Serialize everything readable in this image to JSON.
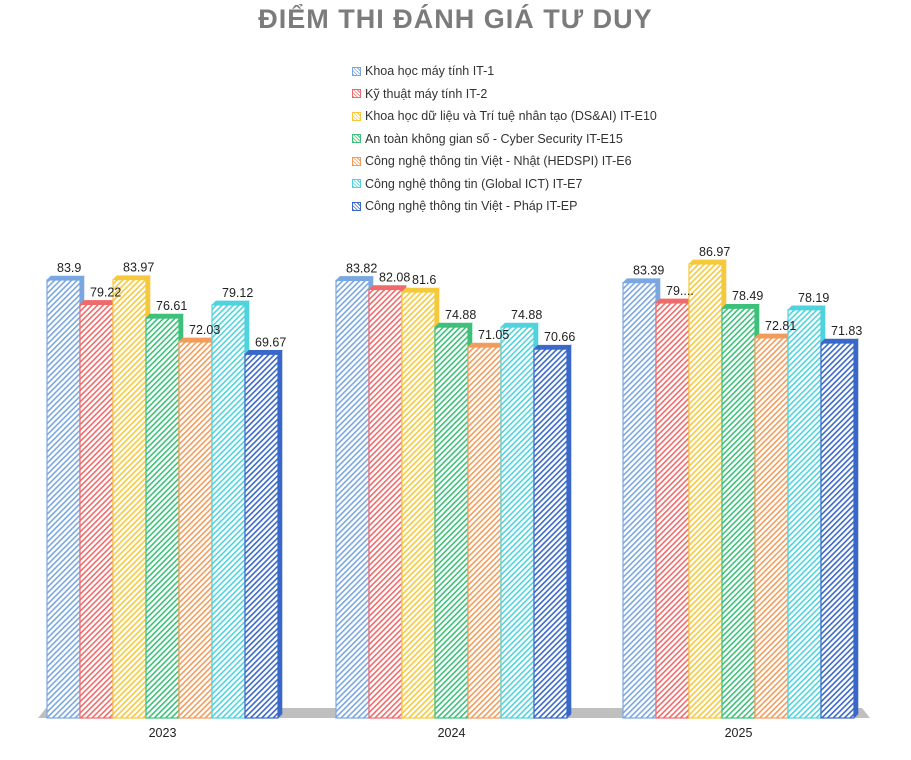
{
  "chart_data": {
    "type": "bar",
    "title": "ĐIỂM THI ĐÁNH GIÁ TƯ DUY",
    "xlabel": "",
    "ylabel": "",
    "ylim": [
      0,
      90
    ],
    "grid": false,
    "legend_position": "top",
    "categories": [
      "2023",
      "2024",
      "2025"
    ],
    "series": [
      {
        "name": "Khoa học máy tính IT-1",
        "color": "#7aa7e0",
        "values": [
          83.9,
          83.82,
          83.39
        ],
        "labels": [
          "83.9",
          "83.82",
          "83.39"
        ]
      },
      {
        "name": "Kỹ thuật máy tính IT-2",
        "color": "#ef6b6b",
        "values": [
          79.22,
          82.08,
          79.5
        ],
        "labels": [
          "79.22",
          "82.08",
          "79...."
        ]
      },
      {
        "name": "Khoa học dữ liệu và Trí tuệ nhân tạo (DS&AI) IT-E10",
        "color": "#f5c93c",
        "values": [
          83.97,
          81.6,
          86.97
        ],
        "labels": [
          "83.97",
          "81.6",
          "86.97"
        ]
      },
      {
        "name": "An toàn không gian số - Cyber Security IT-E15",
        "color": "#3cc07a",
        "values": [
          76.61,
          74.88,
          78.49
        ],
        "labels": [
          "76.61",
          "74.88",
          "78.49"
        ]
      },
      {
        "name": "Công nghệ thông tin Việt - Nhật (HEDSPI) IT-E6",
        "color": "#f29c5c",
        "values": [
          72.03,
          71.05,
          72.81
        ],
        "labels": [
          "72.03",
          "71.05",
          "72.81"
        ]
      },
      {
        "name": "Công nghệ thông tin (Global ICT) IT-E7",
        "color": "#4fd3dc",
        "values": [
          79.12,
          74.88,
          78.19
        ],
        "labels": [
          "79.12",
          "74.88",
          "78.19"
        ]
      },
      {
        "name": "Công nghệ thông tin Việt - Pháp IT-EP",
        "color": "#3a68c8",
        "values": [
          69.67,
          70.66,
          71.83
        ],
        "labels": [
          "69.67",
          "70.66",
          "71.83"
        ]
      }
    ]
  }
}
